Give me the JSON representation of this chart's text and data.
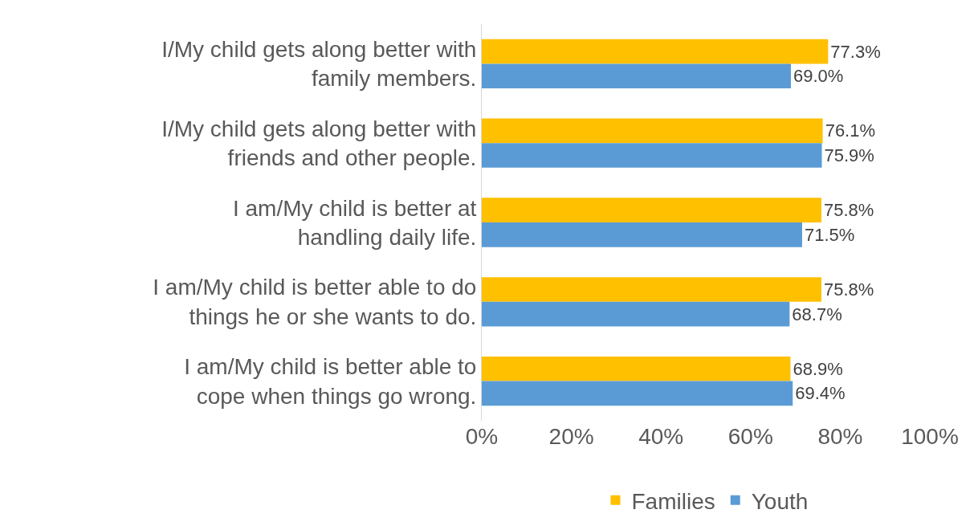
{
  "chart_data": {
    "type": "bar",
    "orientation": "horizontal",
    "categories": [
      "I/My child gets along better with family members.",
      "I/My child gets along better with friends and other people.",
      "I am/My child is better at handling daily life.",
      "I am/My child is better able to do things he or she wants to do.",
      "I am/My child is better able to cope when things go wrong."
    ],
    "series": [
      {
        "name": "Families",
        "color": "#ffc000",
        "values": [
          77.3,
          76.1,
          75.8,
          75.8,
          68.9
        ],
        "value_labels": [
          "77.3%",
          "76.1%",
          "75.8%",
          "75.8%",
          "68.9%"
        ]
      },
      {
        "name": "Youth",
        "color": "#5b9bd5",
        "values": [
          69.0,
          75.9,
          71.5,
          68.7,
          69.4
        ],
        "value_labels": [
          "69.0%",
          "75.9%",
          "71.5%",
          "68.7%",
          "69.4%"
        ]
      }
    ],
    "xlim": [
      0,
      100
    ],
    "xticks": [
      {
        "value": 0,
        "label": "0%"
      },
      {
        "value": 20,
        "label": "20%"
      },
      {
        "value": 40,
        "label": "40%"
      },
      {
        "value": 60,
        "label": "60%"
      },
      {
        "value": 80,
        "label": "80%"
      },
      {
        "value": 100,
        "label": "100%"
      }
    ],
    "grid": false,
    "legend": "bottom"
  }
}
